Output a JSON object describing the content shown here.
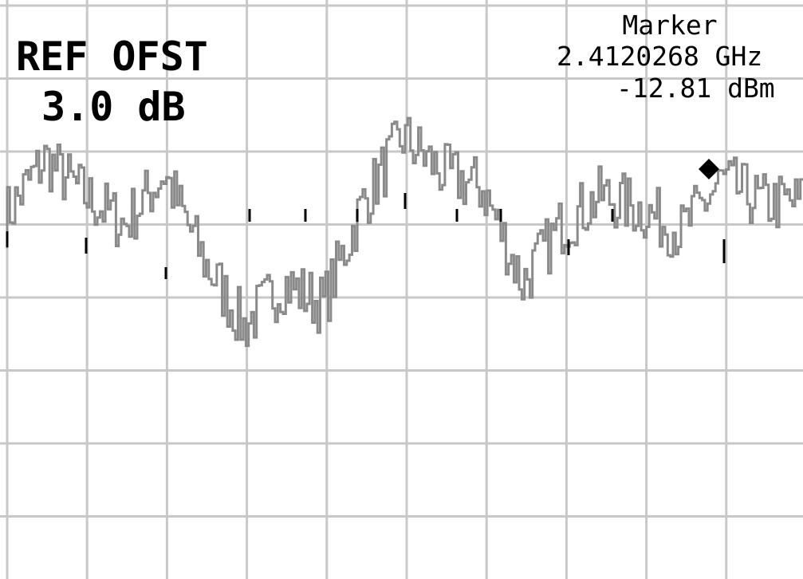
{
  "chart_data": {
    "type": "line",
    "title": "",
    "xlabel": "",
    "ylabel": "",
    "grid": true,
    "ref_offset": {
      "label": "REF OFST",
      "value": "3.0 dB"
    },
    "marker": {
      "label": "Marker",
      "frequency": "2.4120268 GHz",
      "level": "-12.81 dBm"
    },
    "series": [
      {
        "trace_color": "#8a8a8a",
        "x": [
          0,
          5,
          10,
          15,
          20,
          25,
          30,
          35,
          40,
          45,
          50,
          55,
          60,
          65,
          70,
          75,
          80,
          85,
          90,
          95,
          100
        ],
        "values": [
          3.1,
          3.9,
          3.4,
          3.0,
          3.7,
          2.5,
          1.6,
          2.2,
          1.9,
          3.3,
          4.2,
          3.7,
          3.5,
          2.2,
          3.0,
          3.4,
          3.2,
          2.9,
          3.6,
          3.3,
          3.3
        ]
      }
    ]
  }
}
